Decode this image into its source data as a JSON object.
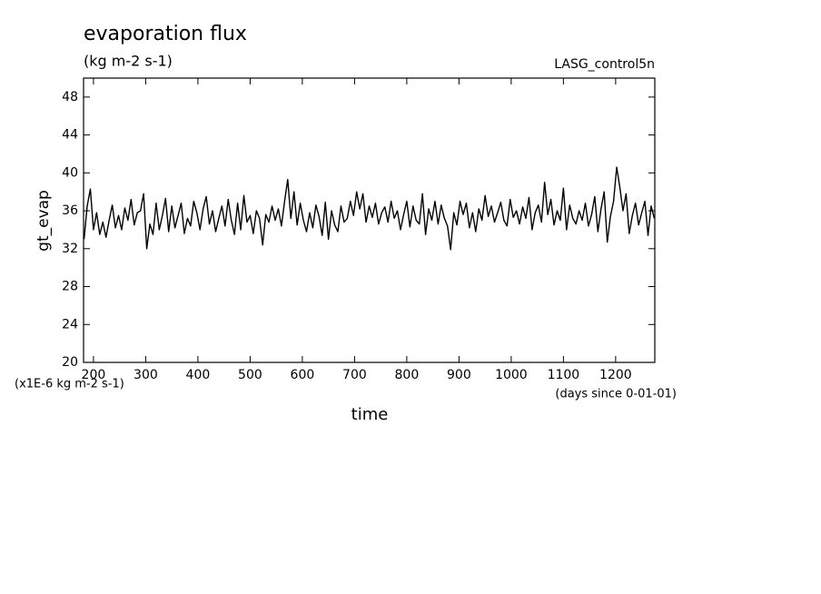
{
  "chart_data": {
    "type": "line",
    "title": "evaporation flux",
    "subtitle": "(kg m-2 s-1)",
    "run_label": "LASG_control5n",
    "y_label": "gt_evap",
    "y_units": "(x1E-6 kg m-2 s-1)",
    "x_label": "time",
    "x_units": "(days since 0-01-01)",
    "color": "#000000",
    "xlim": [
      181,
      1275
    ],
    "ylim": [
      20,
      50
    ],
    "xticks": [
      200,
      300,
      400,
      500,
      600,
      700,
      800,
      900,
      1000,
      1100,
      1200
    ],
    "yticks": [
      20,
      24,
      28,
      32,
      36,
      40,
      44,
      48
    ],
    "x": [
      182,
      188,
      194,
      200,
      206,
      212,
      218,
      224,
      230,
      236,
      242,
      248,
      254,
      260,
      266,
      272,
      278,
      284,
      290,
      296,
      302,
      308,
      314,
      320,
      326,
      332,
      338,
      344,
      350,
      356,
      362,
      368,
      374,
      380,
      386,
      392,
      398,
      404,
      410,
      416,
      422,
      428,
      434,
      440,
      446,
      452,
      458,
      464,
      470,
      476,
      482,
      488,
      494,
      500,
      506,
      512,
      518,
      524,
      530,
      536,
      542,
      548,
      554,
      560,
      566,
      572,
      578,
      584,
      590,
      596,
      602,
      608,
      614,
      620,
      626,
      632,
      638,
      644,
      650,
      656,
      662,
      668,
      674,
      680,
      686,
      692,
      698,
      704,
      710,
      716,
      722,
      728,
      734,
      740,
      746,
      752,
      758,
      764,
      770,
      776,
      782,
      788,
      794,
      800,
      806,
      812,
      818,
      824,
      830,
      836,
      842,
      848,
      854,
      860,
      866,
      872,
      878,
      884,
      890,
      896,
      902,
      908,
      914,
      920,
      926,
      932,
      938,
      944,
      950,
      956,
      962,
      968,
      974,
      980,
      986,
      992,
      998,
      1004,
      1010,
      1016,
      1022,
      1028,
      1034,
      1040,
      1046,
      1052,
      1058,
      1064,
      1070,
      1076,
      1082,
      1088,
      1094,
      1100,
      1106,
      1112,
      1118,
      1124,
      1130,
      1136,
      1142,
      1148,
      1154,
      1160,
      1166,
      1172,
      1178,
      1184,
      1190,
      1196,
      1202,
      1208,
      1214,
      1220,
      1226,
      1232,
      1238,
      1244,
      1250,
      1256,
      1262,
      1268,
      1274
    ],
    "values": [
      33.0,
      36.5,
      38.3,
      34.0,
      35.8,
      33.5,
      34.8,
      33.2,
      35.0,
      36.6,
      34.2,
      35.5,
      34.0,
      36.3,
      35.0,
      37.2,
      34.5,
      35.8,
      36.0,
      37.8,
      32.0,
      34.6,
      33.5,
      36.8,
      34.0,
      35.5,
      37.3,
      33.8,
      36.5,
      34.2,
      35.5,
      36.8,
      33.6,
      35.2,
      34.4,
      37.0,
      35.8,
      34.0,
      36.2,
      37.5,
      34.6,
      36.0,
      33.8,
      35.2,
      36.5,
      34.4,
      37.2,
      35.0,
      33.5,
      36.8,
      34.0,
      37.6,
      34.8,
      35.5,
      33.6,
      36.0,
      35.2,
      32.4,
      35.6,
      34.8,
      36.5,
      35.0,
      36.2,
      34.4,
      37.0,
      39.3,
      35.2,
      38.0,
      34.5,
      36.8,
      35.0,
      33.8,
      35.8,
      34.2,
      36.6,
      35.4,
      33.4,
      36.9,
      33.0,
      36.0,
      34.5,
      33.8,
      36.5,
      34.8,
      35.2,
      37.0,
      35.5,
      38.0,
      36.2,
      37.8,
      34.8,
      36.5,
      35.3,
      36.8,
      34.6,
      35.8,
      36.4,
      34.8,
      37.0,
      35.2,
      36.0,
      34.0,
      35.6,
      37.0,
      34.3,
      36.5,
      35.0,
      34.6,
      37.8,
      33.5,
      36.2,
      35.0,
      37.0,
      34.6,
      36.6,
      35.2,
      34.4,
      31.9,
      35.8,
      34.5,
      37.0,
      35.6,
      36.8,
      34.2,
      35.8,
      33.8,
      36.2,
      35.0,
      37.6,
      35.4,
      36.5,
      34.8,
      35.8,
      36.9,
      35.0,
      34.4,
      37.2,
      35.3,
      36.0,
      34.6,
      36.4,
      35.2,
      37.4,
      34.0,
      35.8,
      36.6,
      34.8,
      39.0,
      35.6,
      37.2,
      34.5,
      36.0,
      35.0,
      38.4,
      34.0,
      36.6,
      35.2,
      34.6,
      36.0,
      35.0,
      36.8,
      34.4,
      35.6,
      37.5,
      33.8,
      36.2,
      38.0,
      32.7,
      35.4,
      37.0,
      40.6,
      38.5,
      36.0,
      37.8,
      33.6,
      35.5,
      36.8,
      34.5,
      35.8,
      37.0,
      33.4,
      36.5,
      35.2
    ]
  }
}
